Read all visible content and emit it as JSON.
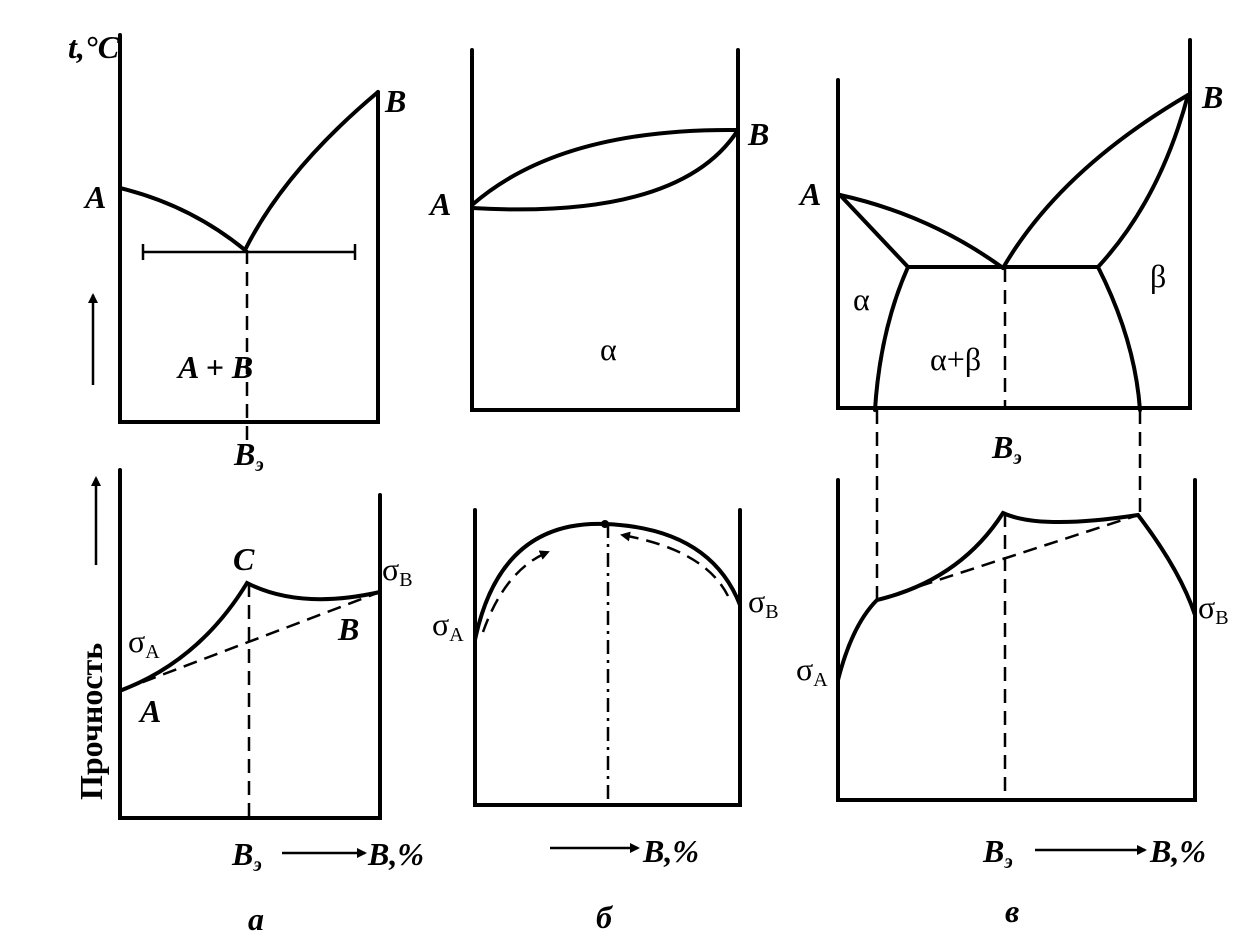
{
  "panel_a": {
    "caption": "а",
    "temp_axis": "t,°C",
    "top_point_a": "A",
    "top_point_b": "B",
    "region": "A + B",
    "eutectic_top": {
      "base": "B",
      "sub": "э"
    },
    "strength_axis": "Прочность",
    "point_c": "C",
    "sigma_a": {
      "base": "σ",
      "sub": "A"
    },
    "sigma_b": {
      "base": "σ",
      "sub": "B"
    },
    "bottom_point_b": "B",
    "bottom_point_a": "A",
    "eutectic_bottom": {
      "base": "B",
      "sub": "э"
    },
    "composition": "B,%"
  },
  "panel_b": {
    "caption": "б",
    "top_point_a": "A",
    "top_point_b": "B",
    "region": "α",
    "sigma_a": {
      "base": "σ",
      "sub": "A"
    },
    "sigma_b": {
      "base": "σ",
      "sub": "B"
    },
    "composition": "B,%"
  },
  "panel_c": {
    "caption": "в",
    "top_point_a": "A",
    "top_point_b": "B",
    "region_alpha": "α",
    "region_beta": "β",
    "region_mix": "α+β",
    "eutectic_top": {
      "base": "B",
      "sub": "э"
    },
    "sigma_a": {
      "base": "σ",
      "sub": "A"
    },
    "sigma_b": {
      "base": "σ",
      "sub": "B"
    },
    "eutectic_bottom": {
      "base": "B",
      "sub": "э"
    },
    "composition": "B,%"
  }
}
